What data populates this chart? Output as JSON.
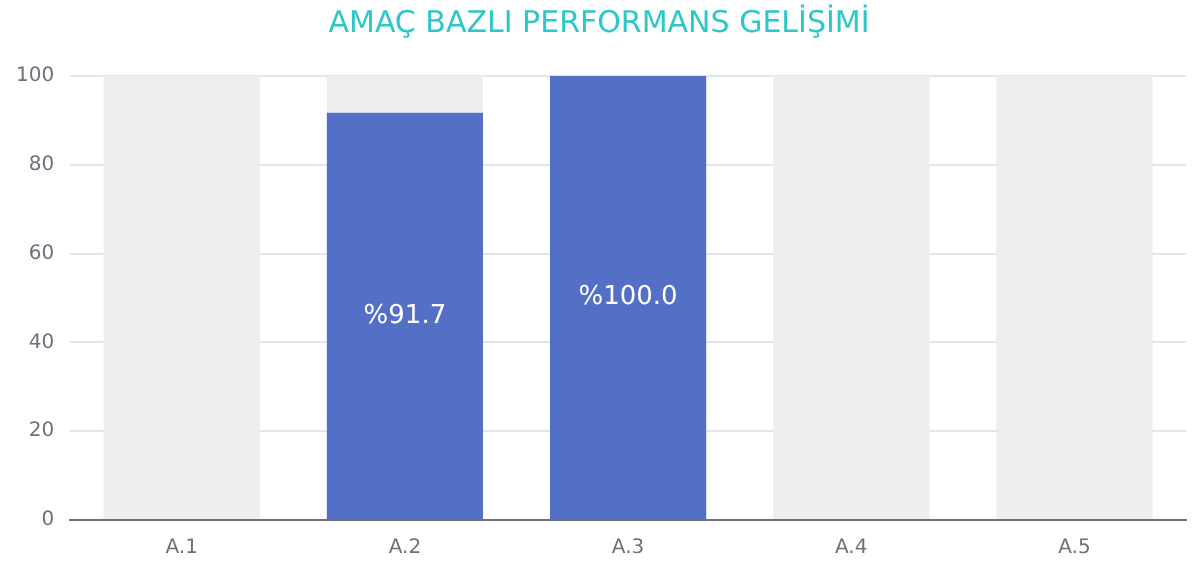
{
  "chart_data": {
    "type": "bar",
    "title": "AMAÇ BAZLI PERFORMANS GELİŞİMİ",
    "categories": [
      "A.1",
      "A.2",
      "A.3",
      "A.4",
      "A.5"
    ],
    "stacked": true,
    "series": [
      {
        "color": "#5470c6",
        "values": [
          null,
          91.7,
          100.0,
          null,
          null
        ],
        "value_labels": [
          null,
          "%91.7",
          "%100.0",
          null,
          null
        ]
      },
      {
        "color": "#eeeeee",
        "values": [
          100,
          8.3,
          null,
          100,
          100
        ]
      }
    ],
    "ylim": [
      0,
      100
    ],
    "yticks": [
      0,
      20,
      40,
      60,
      80,
      100
    ],
    "grid": "y",
    "legend": false
  }
}
